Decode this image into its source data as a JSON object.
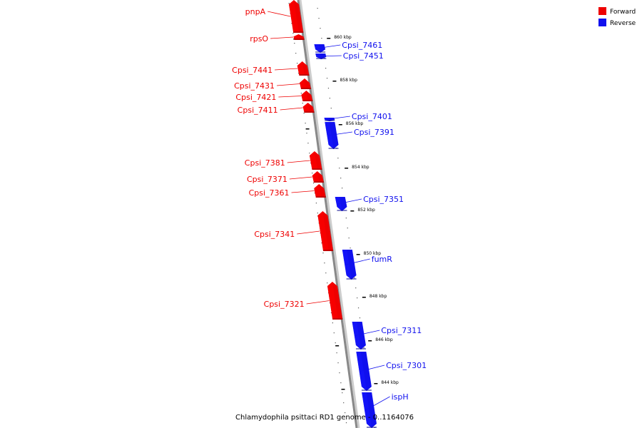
{
  "caption": "Chlamydophila psittaci RD1 genome - 0..1164076",
  "colors": {
    "forward": "#ee0000",
    "reverse": "#1010ee",
    "backbone": "#888888"
  },
  "legend": [
    {
      "label": "Forward",
      "strand": "forward"
    },
    {
      "label": "Reverse",
      "strand": "reverse"
    }
  ],
  "ticks": [
    {
      "label": "860 kbp",
      "kbp": 860
    },
    {
      "label": "858 kbp",
      "kbp": 858
    },
    {
      "label": "856 kbp",
      "kbp": 856
    },
    {
      "label": "854 kbp",
      "kbp": 854
    },
    {
      "label": "852 kbp",
      "kbp": 852
    },
    {
      "label": "850 kbp",
      "kbp": 850
    },
    {
      "label": "848 kbp",
      "kbp": 848
    },
    {
      "label": "846 kbp",
      "kbp": 846
    },
    {
      "label": "844 kbp",
      "kbp": 844
    }
  ],
  "genes": [
    {
      "name": "pnpA",
      "strand": "forward"
    },
    {
      "name": "rpsO",
      "strand": "forward"
    },
    {
      "name": "Cpsi_7461",
      "strand": "reverse"
    },
    {
      "name": "Cpsi_7451",
      "strand": "reverse"
    },
    {
      "name": "Cpsi_7441",
      "strand": "forward"
    },
    {
      "name": "Cpsi_7431",
      "strand": "forward"
    },
    {
      "name": "Cpsi_7421",
      "strand": "forward"
    },
    {
      "name": "Cpsi_7411",
      "strand": "forward"
    },
    {
      "name": "Cpsi_7401",
      "strand": "reverse"
    },
    {
      "name": "Cpsi_7391",
      "strand": "reverse"
    },
    {
      "name": "Cpsi_7381",
      "strand": "forward"
    },
    {
      "name": "Cpsi_7371",
      "strand": "forward"
    },
    {
      "name": "Cpsi_7361",
      "strand": "forward"
    },
    {
      "name": "Cpsi_7351",
      "strand": "reverse"
    },
    {
      "name": "Cpsi_7341",
      "strand": "forward"
    },
    {
      "name": "fumR",
      "strand": "reverse"
    },
    {
      "name": "Cpsi_7321",
      "strand": "forward"
    },
    {
      "name": "Cpsi_7311",
      "strand": "reverse"
    },
    {
      "name": "Cpsi_7301",
      "strand": "reverse"
    },
    {
      "name": "ispH",
      "strand": "reverse"
    }
  ]
}
